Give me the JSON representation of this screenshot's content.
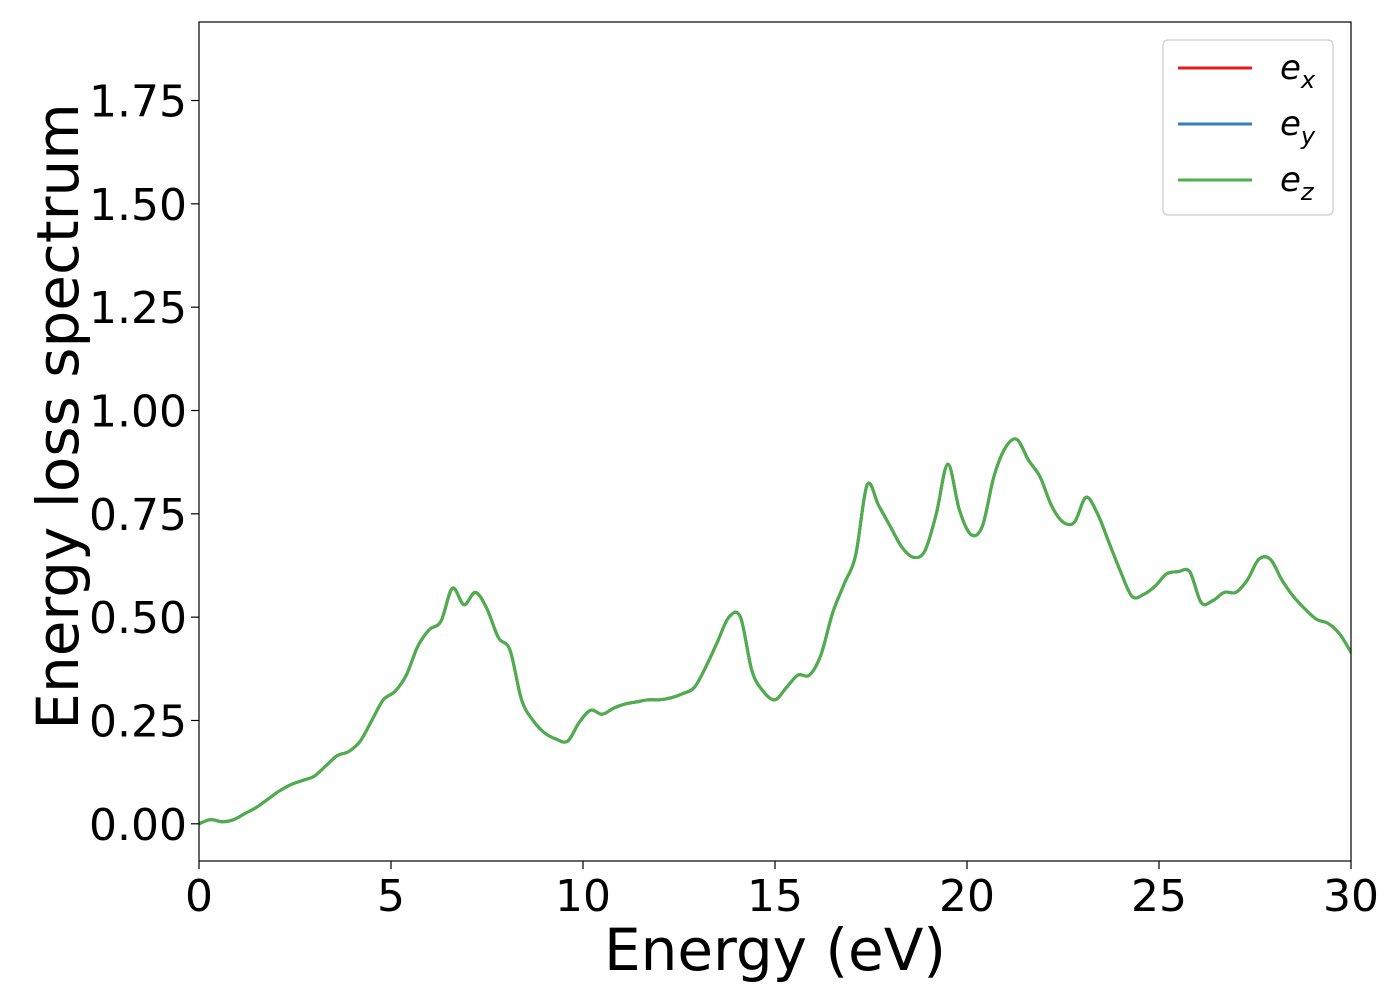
{
  "chart_data": {
    "type": "line",
    "title": "",
    "xlabel": "Energy (eV)",
    "ylabel": "Energy loss spectrum",
    "xlim": [
      0,
      30
    ],
    "ylim": [
      -0.09,
      1.94
    ],
    "xticks": [
      0,
      5,
      10,
      15,
      20,
      25,
      30
    ],
    "xtick_labels": [
      "0",
      "5",
      "10",
      "15",
      "20",
      "25",
      "30"
    ],
    "yticks": [
      0.0,
      0.25,
      0.5,
      0.75,
      1.0,
      1.25,
      1.5,
      1.75
    ],
    "ytick_labels": [
      "0.00",
      "0.25",
      "0.50",
      "0.75",
      "1.00",
      "1.25",
      "1.50",
      "1.75"
    ],
    "grid": false,
    "legend_position": "top-right",
    "x": [
      0,
      0.3,
      0.6,
      0.9,
      1.2,
      1.5,
      1.8,
      2.1,
      2.4,
      2.7,
      3.0,
      3.3,
      3.6,
      3.9,
      4.2,
      4.5,
      4.8,
      5.1,
      5.4,
      5.7,
      6.0,
      6.3,
      6.6,
      6.9,
      7.2,
      7.5,
      7.8,
      8.1,
      8.4,
      8.7,
      9.0,
      9.3,
      9.6,
      9.9,
      10.2,
      10.5,
      10.8,
      11.1,
      11.4,
      11.7,
      12.0,
      12.3,
      12.6,
      12.9,
      13.2,
      13.5,
      13.8,
      14.1,
      14.4,
      14.7,
      15.0,
      15.3,
      15.6,
      15.9,
      16.2,
      16.5,
      16.8,
      17.1,
      17.4,
      17.7,
      18.0,
      18.3,
      18.6,
      18.9,
      19.2,
      19.5,
      19.8,
      20.1,
      20.4,
      20.7,
      21.0,
      21.3,
      21.6,
      21.9,
      22.2,
      22.5,
      22.8,
      23.1,
      23.4,
      23.7,
      24.0,
      24.3,
      24.6,
      24.9,
      25.2,
      25.5,
      25.8,
      26.1,
      26.4,
      26.7,
      27.0,
      27.3,
      27.6,
      27.9,
      28.2,
      28.5,
      28.8,
      29.1,
      29.4,
      29.7,
      30.0
    ],
    "series": [
      {
        "name": "e_x",
        "name_base": "e",
        "name_sub": "x",
        "color": "#e41a1c",
        "values": [
          0.0,
          0.01,
          0.005,
          0.01,
          0.025,
          0.04,
          0.06,
          0.08,
          0.095,
          0.105,
          0.115,
          0.14,
          0.165,
          0.175,
          0.2,
          0.25,
          0.3,
          0.32,
          0.36,
          0.43,
          0.47,
          0.49,
          0.57,
          0.53,
          0.56,
          0.52,
          0.45,
          0.42,
          0.3,
          0.25,
          0.22,
          0.205,
          0.2,
          0.245,
          0.275,
          0.265,
          0.28,
          0.29,
          0.295,
          0.3,
          0.3,
          0.305,
          0.315,
          0.33,
          0.38,
          0.44,
          0.5,
          0.5,
          0.37,
          0.32,
          0.3,
          0.33,
          0.36,
          0.36,
          0.41,
          0.51,
          0.58,
          0.65,
          0.82,
          0.77,
          0.72,
          0.67,
          0.645,
          0.66,
          0.75,
          0.87,
          0.76,
          0.7,
          0.72,
          0.84,
          0.91,
          0.93,
          0.88,
          0.84,
          0.77,
          0.73,
          0.73,
          0.79,
          0.75,
          0.68,
          0.61,
          0.55,
          0.555,
          0.575,
          0.605,
          0.61,
          0.61,
          0.535,
          0.54,
          0.56,
          0.56,
          0.59,
          0.64,
          0.64,
          0.59,
          0.55,
          0.52,
          0.495,
          0.485,
          0.46,
          0.415
        ]
      },
      {
        "name": "e_y",
        "name_base": "e",
        "name_sub": "y",
        "color": "#377eb8",
        "values": [
          0.0,
          0.01,
          0.005,
          0.01,
          0.025,
          0.04,
          0.06,
          0.08,
          0.095,
          0.105,
          0.115,
          0.14,
          0.165,
          0.175,
          0.2,
          0.25,
          0.3,
          0.32,
          0.36,
          0.43,
          0.47,
          0.49,
          0.57,
          0.53,
          0.56,
          0.52,
          0.45,
          0.42,
          0.3,
          0.25,
          0.22,
          0.205,
          0.2,
          0.245,
          0.275,
          0.265,
          0.28,
          0.29,
          0.295,
          0.3,
          0.3,
          0.305,
          0.315,
          0.33,
          0.38,
          0.44,
          0.5,
          0.5,
          0.37,
          0.32,
          0.3,
          0.33,
          0.36,
          0.36,
          0.41,
          0.51,
          0.58,
          0.65,
          0.82,
          0.77,
          0.72,
          0.67,
          0.645,
          0.66,
          0.75,
          0.87,
          0.76,
          0.7,
          0.72,
          0.84,
          0.91,
          0.93,
          0.88,
          0.84,
          0.77,
          0.73,
          0.73,
          0.79,
          0.75,
          0.68,
          0.61,
          0.55,
          0.555,
          0.575,
          0.605,
          0.61,
          0.61,
          0.535,
          0.54,
          0.56,
          0.56,
          0.59,
          0.64,
          0.64,
          0.59,
          0.55,
          0.52,
          0.495,
          0.485,
          0.46,
          0.415
        ]
      },
      {
        "name": "e_z",
        "name_base": "e",
        "name_sub": "z",
        "color": "#4daf4a",
        "values": [
          0.0,
          0.01,
          0.005,
          0.01,
          0.025,
          0.04,
          0.06,
          0.08,
          0.095,
          0.105,
          0.115,
          0.14,
          0.165,
          0.175,
          0.2,
          0.25,
          0.3,
          0.32,
          0.36,
          0.43,
          0.47,
          0.49,
          0.57,
          0.53,
          0.56,
          0.52,
          0.45,
          0.42,
          0.3,
          0.25,
          0.22,
          0.205,
          0.2,
          0.245,
          0.275,
          0.265,
          0.28,
          0.29,
          0.295,
          0.3,
          0.3,
          0.305,
          0.315,
          0.33,
          0.38,
          0.44,
          0.5,
          0.5,
          0.37,
          0.32,
          0.3,
          0.33,
          0.36,
          0.36,
          0.41,
          0.51,
          0.58,
          0.65,
          0.82,
          0.77,
          0.72,
          0.67,
          0.645,
          0.66,
          0.75,
          0.87,
          0.76,
          0.7,
          0.72,
          0.84,
          0.91,
          0.93,
          0.88,
          0.84,
          0.77,
          0.73,
          0.73,
          0.79,
          0.75,
          0.68,
          0.61,
          0.55,
          0.555,
          0.575,
          0.605,
          0.61,
          0.61,
          0.535,
          0.54,
          0.56,
          0.56,
          0.59,
          0.64,
          0.64,
          0.59,
          0.55,
          0.52,
          0.495,
          0.485,
          0.46,
          0.415
        ]
      }
    ]
  }
}
